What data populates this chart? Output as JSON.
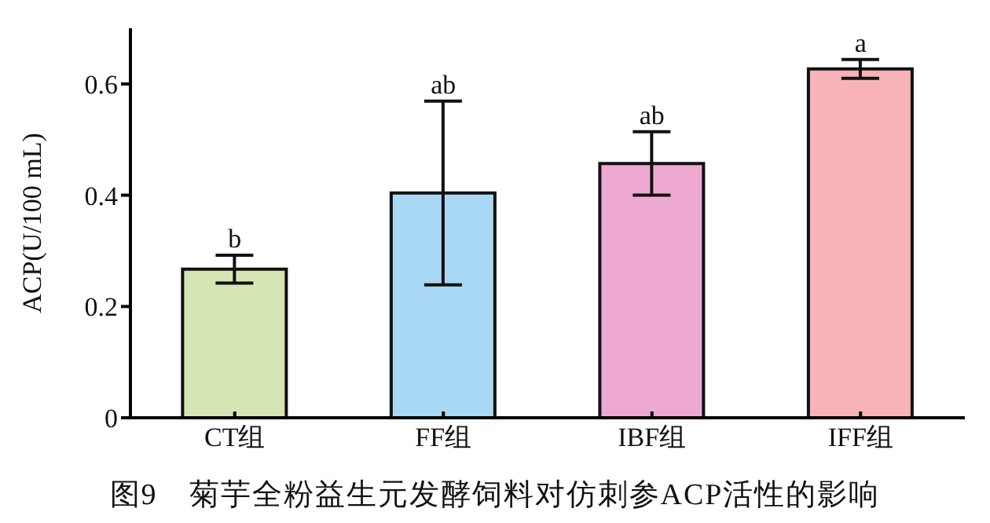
{
  "chart_data": {
    "type": "bar",
    "title": "图9　菊芋全粉益生元发酵饲料对仿刺参ACP活性的影响",
    "ylabel": "ACP(U/100 mL)",
    "categories": [
      "CT组",
      "FF组",
      "IBF组",
      "IFF组"
    ],
    "values": [
      0.267,
      0.404,
      0.457,
      0.627
    ],
    "errors": [
      0.025,
      0.165,
      0.057,
      0.017
    ],
    "colors": [
      "#d5e5b3",
      "#a8d8f3",
      "#eea9d2",
      "#f7b3b7"
    ],
    "ylim": [
      0,
      0.7
    ],
    "yticks": [
      0,
      0.2,
      0.4,
      0.6
    ],
    "grid": false,
    "legend": false,
    "annotations": [
      {
        "text": "b",
        "x": "CT组",
        "y": 0.292
      },
      {
        "text": "ab",
        "x": "FF组",
        "y": 0.569
      },
      {
        "text": "ab",
        "x": "IBF组",
        "y": 0.514
      },
      {
        "text": "a",
        "x": "IFF组",
        "y": 0.644
      }
    ]
  }
}
